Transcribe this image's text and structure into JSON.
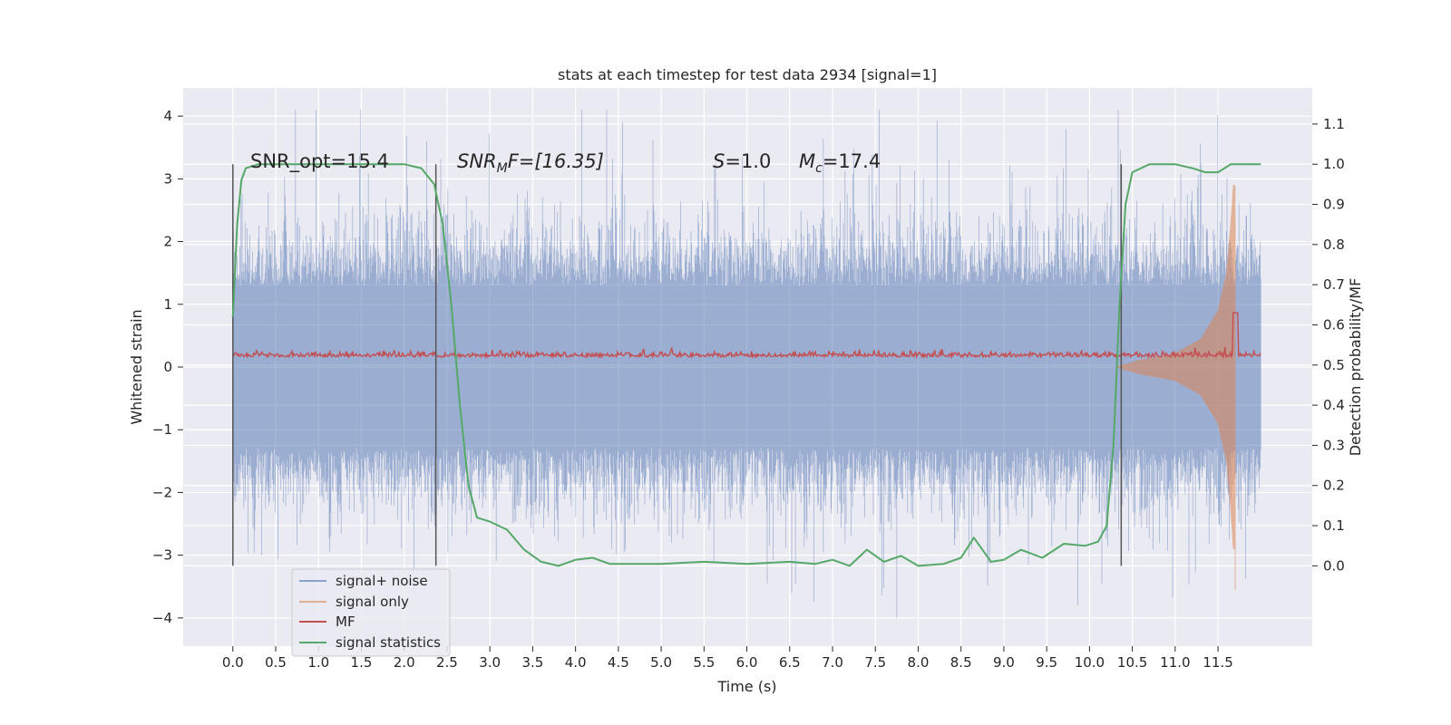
{
  "chart_data": {
    "type": "line",
    "title": "stats at each timestep for test data 2934 [signal=1]",
    "xlabel": "Time (s)",
    "ylabel": "Whitened strain",
    "ylabel_right": "Detection probability/MF",
    "xlim": [
      -0.58,
      12.6
    ],
    "ylim": [
      -4.45,
      4.45
    ],
    "ylim_right": [
      -0.2,
      1.19
    ],
    "x_ticks": [
      "0.0",
      "0.5",
      "1.0",
      "1.5",
      "2.0",
      "2.5",
      "3.0",
      "3.5",
      "4.0",
      "4.5",
      "5.0",
      "5.5",
      "6.0",
      "6.5",
      "7.0",
      "7.5",
      "8.0",
      "8.5",
      "9.0",
      "9.5",
      "10.0",
      "10.5",
      "11.0",
      "11.5"
    ],
    "y_ticks": [
      "4",
      "3",
      "2",
      "1",
      "0",
      "−1",
      "−2",
      "−3",
      "−4"
    ],
    "y_ticks_right": [
      "1.1",
      "1.0",
      "0.9",
      "0.8",
      "0.7",
      "0.6",
      "0.5",
      "0.4",
      "0.3",
      "0.2",
      "0.1",
      "0.0"
    ],
    "grid": true,
    "background": "#eaeaf2",
    "colors": {
      "signal_noise": "#4c72b0",
      "signal_only": "#dd8452",
      "mf": "#c44e52",
      "signal_statistics": "#55a868",
      "markers": "#555555"
    },
    "annotations": {
      "snr_opt": "SNR_opt=15.4",
      "snr_mf_snr": "SNR",
      "snr_mf_sub": "M",
      "snr_mf_rest": "F=[16.35]",
      "s_label_sym": "S",
      "s_label_val": "=1.0",
      "mc_sym": "M",
      "mc_sub": "c",
      "mc_val": "=17.4"
    },
    "vertical_markers_x": [
      0.0,
      2.37,
      10.37
    ],
    "series": [
      {
        "name": "signal+ noise",
        "description_values": "white noise, envelope approx ±1.3 core, peaks to ±4.1, x from 0 to 12.0"
      },
      {
        "name": "signal only",
        "envelope_points": [
          [
            10.3,
            0.0
          ],
          [
            10.6,
            0.12
          ],
          [
            11.0,
            0.22
          ],
          [
            11.3,
            0.45
          ],
          [
            11.5,
            0.9
          ],
          [
            11.6,
            1.5
          ],
          [
            11.65,
            2.3
          ],
          [
            11.68,
            2.9
          ]
        ],
        "merger_time": 11.7
      },
      {
        "name": "MF",
        "baseline_right_axis": 0.52,
        "peak": [
          11.7,
          0.63
        ]
      },
      {
        "name": "signal statistics",
        "points": [
          [
            0.0,
            0.62
          ],
          [
            0.05,
            0.85
          ],
          [
            0.1,
            0.96
          ],
          [
            0.15,
            0.99
          ],
          [
            0.3,
            1.0
          ],
          [
            2.0,
            1.0
          ],
          [
            2.2,
            0.99
          ],
          [
            2.35,
            0.95
          ],
          [
            2.45,
            0.85
          ],
          [
            2.55,
            0.65
          ],
          [
            2.65,
            0.4
          ],
          [
            2.75,
            0.2
          ],
          [
            2.85,
            0.12
          ],
          [
            3.0,
            0.11
          ],
          [
            3.2,
            0.09
          ],
          [
            3.4,
            0.04
          ],
          [
            3.6,
            0.01
          ],
          [
            3.8,
            0.0
          ],
          [
            4.0,
            0.015
          ],
          [
            4.2,
            0.02
          ],
          [
            4.4,
            0.005
          ],
          [
            5.0,
            0.005
          ],
          [
            5.5,
            0.01
          ],
          [
            6.0,
            0.005
          ],
          [
            6.5,
            0.01
          ],
          [
            6.8,
            0.005
          ],
          [
            7.0,
            0.015
          ],
          [
            7.2,
            0.0
          ],
          [
            7.4,
            0.04
          ],
          [
            7.6,
            0.01
          ],
          [
            7.8,
            0.025
          ],
          [
            8.0,
            0.0
          ],
          [
            8.3,
            0.005
          ],
          [
            8.5,
            0.02
          ],
          [
            8.65,
            0.07
          ],
          [
            8.85,
            0.01
          ],
          [
            9.0,
            0.015
          ],
          [
            9.2,
            0.04
          ],
          [
            9.45,
            0.02
          ],
          [
            9.7,
            0.055
          ],
          [
            9.95,
            0.05
          ],
          [
            10.1,
            0.06
          ],
          [
            10.2,
            0.1
          ],
          [
            10.28,
            0.3
          ],
          [
            10.35,
            0.65
          ],
          [
            10.42,
            0.9
          ],
          [
            10.5,
            0.98
          ],
          [
            10.7,
            1.0
          ],
          [
            11.0,
            1.0
          ],
          [
            11.2,
            0.99
          ],
          [
            11.35,
            0.98
          ],
          [
            11.5,
            0.98
          ],
          [
            11.65,
            1.0
          ],
          [
            12.0,
            1.0
          ]
        ]
      }
    ],
    "legend": {
      "position": "lower-left",
      "entries": [
        "signal+ noise",
        "signal only",
        "MF",
        "signal statistics"
      ]
    }
  }
}
